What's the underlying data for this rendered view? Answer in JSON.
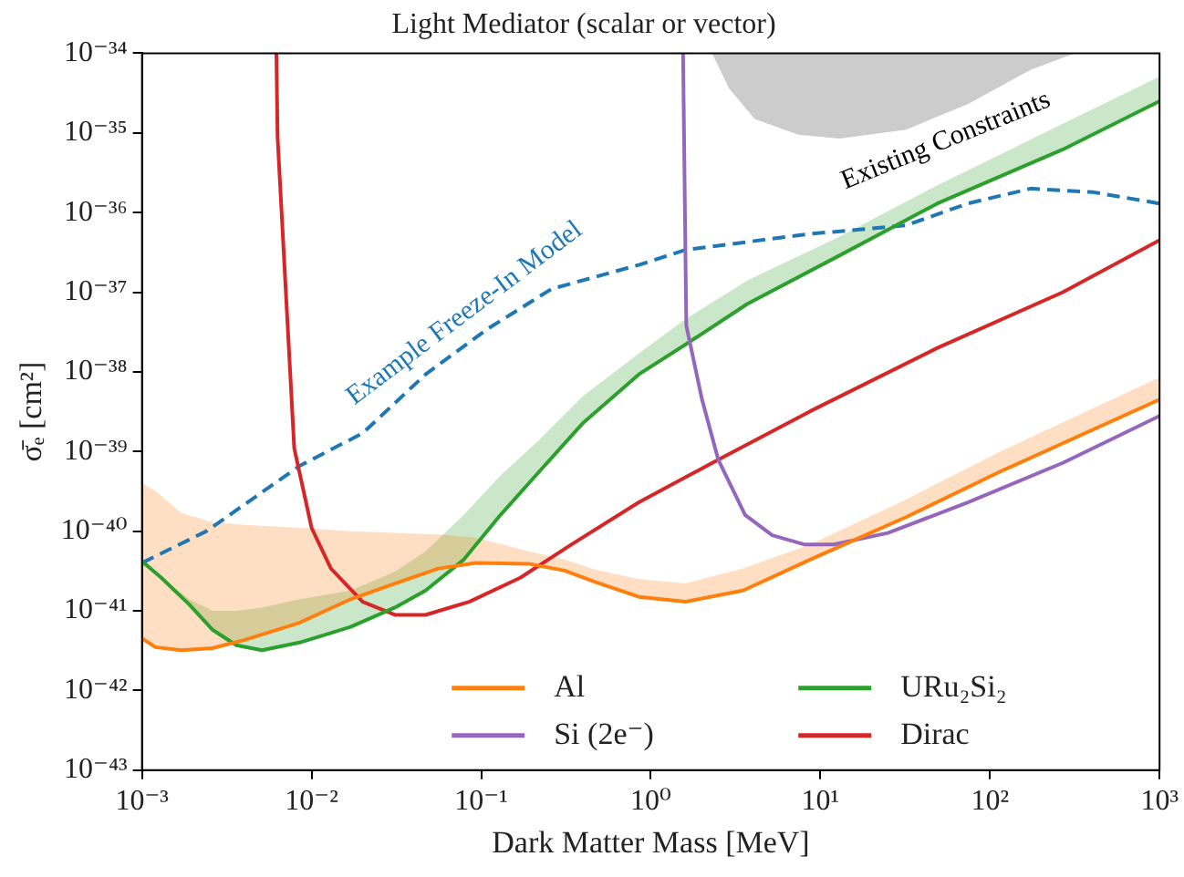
{
  "chart_data": {
    "type": "line",
    "title": "Light Mediator (scalar or vector)",
    "xlabel": "Dark Matter Mass [MeV]",
    "ylabel": "σ̄ₑ [cm²]",
    "log": "xy",
    "grid": false,
    "legend": "bottom right",
    "xlim": [
      0.001,
      1000
    ],
    "xticks": [
      {
        "value": 0.001,
        "label": "10⁻³"
      },
      {
        "value": 0.01,
        "label": "10⁻²"
      },
      {
        "value": 0.1,
        "label": "10⁻¹"
      },
      {
        "value": 1,
        "label": "10⁰"
      },
      {
        "value": 10,
        "label": "10¹"
      },
      {
        "value": 100,
        "label": "10²"
      },
      {
        "value": 1000,
        "label": "10³"
      }
    ],
    "ylim": [
      1e-43,
      1e-34
    ],
    "yticks": [
      {
        "value": 1e-43,
        "label": "10⁻⁴³"
      },
      {
        "value": 1e-42,
        "label": "10⁻⁴²"
      },
      {
        "value": 1e-41,
        "label": "10⁻⁴¹"
      },
      {
        "value": 1e-40,
        "label": "10⁻⁴⁰"
      },
      {
        "value": 1e-39,
        "label": "10⁻³⁹"
      },
      {
        "value": 1e-38,
        "label": "10⁻³⁸"
      },
      {
        "value": 1e-37,
        "label": "10⁻³⁷"
      },
      {
        "value": 1e-36,
        "label": "10⁻³⁶"
      },
      {
        "value": 1e-35,
        "label": "10⁻³⁵"
      },
      {
        "value": 1e-34,
        "label": "10⁻³⁴"
      }
    ],
    "annotations": [
      "Example Freeze-In Model",
      "Existing Constraints"
    ],
    "series": [
      {
        "name": "Al",
        "type": "line",
        "color": "#ff7f0e",
        "x": [
          0.001,
          0.0012,
          0.0017,
          0.0026,
          0.004,
          0.0085,
          0.017,
          0.031,
          0.056,
          0.093,
          0.19,
          0.31,
          0.47,
          0.85,
          1.6,
          3.5,
          8.7,
          32,
          115,
          1000
        ],
        "values": [
          4.5e-42,
          3.5e-42,
          3.2e-42,
          3.4e-42,
          4.3e-42,
          7.1e-42,
          1.4e-41,
          2.2e-41,
          3.4e-41,
          4e-41,
          3.9e-41,
          3.2e-41,
          2.3e-41,
          1.5e-41,
          1.3e-41,
          1.8e-41,
          4.4e-41,
          1.5e-40,
          5.6e-40,
          4.5e-39
        ],
        "lower": [
          4.5e-42,
          3.5e-42,
          3.2e-42,
          3.4e-42,
          4.3e-42,
          7.1e-42,
          1.4e-41,
          2.2e-41,
          3.4e-41,
          4e-41,
          3.9e-41,
          3.2e-41,
          2.3e-41,
          1.5e-41,
          1.3e-41,
          1.8e-41,
          4.4e-41,
          1.5e-40,
          5.6e-40,
          4.5e-39
        ],
        "upper": [
          4e-40,
          3.2e-40,
          1.7e-40,
          1.3e-40,
          1.2e-40,
          1.1e-40,
          1e-40,
          9.5e-41,
          9.1e-41,
          8.3e-41,
          5.6e-41,
          4.4e-41,
          3.3e-41,
          2.5e-41,
          2.2e-41,
          3.4e-41,
          6.8e-41,
          2.5e-40,
          1e-39,
          8.5e-39
        ]
      },
      {
        "name": "Si (2e⁻)",
        "type": "line",
        "color": "#9467bd",
        "x": [
          1.55,
          1.62,
          2.0,
          2.5,
          3.6,
          5.2,
          8.1,
          12,
          25,
          74,
          269,
          1000
        ],
        "values": [
          1e-34,
          3.8e-38,
          4.6e-39,
          7.9e-40,
          1.6e-40,
          8.9e-41,
          6.8e-41,
          6.8e-41,
          9.5e-41,
          2.3e-40,
          7.2e-40,
          2.8e-39
        ]
      },
      {
        "name": "URu₂Si₂",
        "type": "line",
        "color": "#2ca02c",
        "x": [
          0.001,
          0.0013,
          0.0019,
          0.0026,
          0.0036,
          0.0051,
          0.0085,
          0.017,
          0.031,
          0.047,
          0.079,
          0.13,
          0.22,
          0.4,
          0.85,
          1.6,
          3.7,
          13,
          49,
          269,
          1000
        ],
        "values": [
          4.2e-41,
          2.6e-41,
          1.2e-41,
          5.8e-42,
          3.7e-42,
          3.2e-42,
          4e-42,
          6.3e-42,
          1.1e-41,
          1.8e-41,
          4.4e-41,
          1.6e-40,
          5.6e-40,
          2.3e-39,
          9.3e-39,
          2.2e-38,
          7.1e-38,
          2.9e-37,
          1.3e-36,
          6.2e-36,
          2.5e-35
        ],
        "lower": [
          4.2e-41,
          2.6e-41,
          1.2e-41,
          5.8e-42,
          3.7e-42,
          3.2e-42,
          4e-42,
          6.3e-42,
          1.1e-41,
          1.8e-41,
          4.4e-41,
          1.6e-40,
          5.6e-40,
          2.3e-39,
          9.3e-39,
          2.2e-38,
          7.1e-38,
          2.9e-37,
          1.3e-36,
          6.2e-36,
          2.5e-35
        ],
        "upper": [
          4.2e-41,
          2.6e-41,
          1.4e-41,
          1e-41,
          1e-41,
          1.1e-41,
          1.4e-41,
          1.8e-41,
          3.1e-41,
          5.6e-41,
          1.6e-40,
          5e-40,
          1.4e-39,
          5e-39,
          1.7e-38,
          4.6e-38,
          1.4e-37,
          5e-37,
          2.2e-36,
          1.3e-35,
          5.1e-35
        ]
      },
      {
        "name": "Dirac",
        "type": "line",
        "color": "#d62728",
        "x": [
          0.0062,
          0.0063,
          0.0079,
          0.01,
          0.013,
          0.02,
          0.031,
          0.047,
          0.085,
          0.17,
          0.34,
          0.85,
          2.5,
          8.7,
          49,
          269,
          1000
        ],
        "values": [
          1e-34,
          8.9e-36,
          1.1e-39,
          1.1e-40,
          3.4e-41,
          1.3e-41,
          8.9e-42,
          8.9e-42,
          1.3e-41,
          2.6e-41,
          6.8e-41,
          2.3e-40,
          7.9e-40,
          3.2e-39,
          2e-38,
          1e-37,
          4.5e-37
        ]
      },
      {
        "type": "line",
        "color": "#1f77b4",
        "line_style": "dashed",
        "x": [
          0.001,
          0.0024,
          0.0085,
          0.02,
          0.047,
          0.11,
          0.26,
          0.85,
          1.6,
          8.7,
          32,
          74,
          174,
          407,
          1000
        ],
        "values": [
          4e-41,
          1e-40,
          6.6e-40,
          1.7e-39,
          9.3e-39,
          3.5e-38,
          1.1e-37,
          2.2e-37,
          3.4e-37,
          5.4e-37,
          6.9e-37,
          1.3e-36,
          2e-36,
          1.8e-36,
          1.3e-36
        ]
      },
      {
        "type": "area",
        "color": "#cccccc",
        "x": [
          2.3,
          2.9,
          4.1,
          7.4,
          13,
          32,
          74,
          174,
          316
        ],
        "values": [
          1e-34,
          3.6e-35,
          1.5e-35,
          9.5e-36,
          8.5e-36,
          1.1e-35,
          2.3e-35,
          6.2e-35,
          1e-34
        ]
      }
    ]
  }
}
